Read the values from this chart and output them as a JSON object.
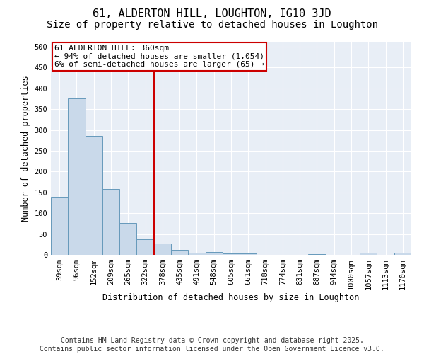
{
  "title": "61, ALDERTON HILL, LOUGHTON, IG10 3JD",
  "subtitle": "Size of property relative to detached houses in Loughton",
  "xlabel": "Distribution of detached houses by size in Loughton",
  "ylabel": "Number of detached properties",
  "categories": [
    "39sqm",
    "96sqm",
    "152sqm",
    "209sqm",
    "265sqm",
    "322sqm",
    "378sqm",
    "435sqm",
    "491sqm",
    "548sqm",
    "605sqm",
    "661sqm",
    "718sqm",
    "774sqm",
    "831sqm",
    "887sqm",
    "944sqm",
    "1000sqm",
    "1057sqm",
    "1113sqm",
    "1170sqm"
  ],
  "bar_heights": [
    140,
    375,
    285,
    158,
    77,
    37,
    28,
    12,
    5,
    7,
    4,
    4,
    0,
    0,
    0,
    2,
    0,
    0,
    5,
    0,
    5
  ],
  "bar_color": "#c9d9ea",
  "bar_edge_color": "#6699bb",
  "vline_x_index": 6,
  "vline_color": "#cc0000",
  "annotation_text": "61 ALDERTON HILL: 360sqm\n← 94% of detached houses are smaller (1,054)\n6% of semi-detached houses are larger (65) →",
  "annotation_box_color": "#ffffff",
  "annotation_box_edge_color": "#cc0000",
  "ylim": [
    0,
    510
  ],
  "yticks": [
    0,
    50,
    100,
    150,
    200,
    250,
    300,
    350,
    400,
    450,
    500
  ],
  "footer": "Contains HM Land Registry data © Crown copyright and database right 2025.\nContains public sector information licensed under the Open Government Licence v3.0.",
  "background_color": "#e8eef6",
  "title_fontsize": 11,
  "subtitle_fontsize": 10,
  "tick_fontsize": 7.5,
  "ylabel_fontsize": 8.5,
  "xlabel_fontsize": 8.5,
  "annotation_fontsize": 8,
  "footer_fontsize": 7
}
